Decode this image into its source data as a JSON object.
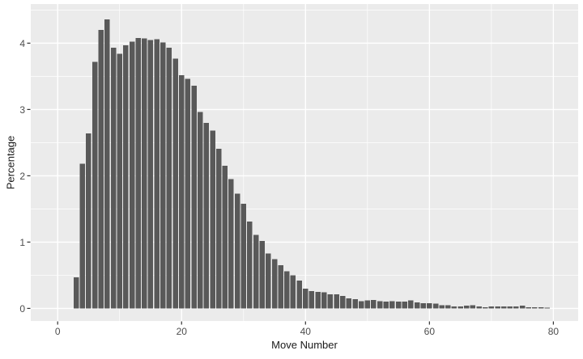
{
  "chart_data": {
    "type": "bar",
    "style": "ggplot2-histogram",
    "xlabel": "Move Number",
    "ylabel": "Percentage",
    "x": [
      3,
      4,
      5,
      6,
      7,
      8,
      9,
      10,
      11,
      12,
      13,
      14,
      15,
      16,
      17,
      18,
      19,
      20,
      21,
      22,
      23,
      24,
      25,
      26,
      27,
      28,
      29,
      30,
      31,
      32,
      33,
      34,
      35,
      36,
      37,
      38,
      39,
      40,
      41,
      42,
      43,
      44,
      45,
      46,
      47,
      48,
      49,
      50,
      51,
      52,
      53,
      54,
      55,
      56,
      57,
      58,
      59,
      60,
      61,
      62,
      63,
      64,
      65,
      66,
      67,
      68,
      69,
      70,
      71,
      72,
      73,
      74,
      75,
      76,
      77,
      78,
      79
    ],
    "values": [
      0.47,
      2.18,
      2.64,
      3.72,
      4.2,
      4.36,
      3.93,
      3.84,
      3.97,
      4.02,
      4.08,
      4.07,
      4.05,
      4.06,
      4.01,
      3.93,
      3.77,
      3.52,
      3.46,
      3.36,
      2.96,
      2.8,
      2.68,
      2.41,
      2.15,
      1.95,
      1.73,
      1.58,
      1.31,
      1.11,
      1.02,
      0.83,
      0.74,
      0.65,
      0.56,
      0.5,
      0.42,
      0.3,
      0.26,
      0.25,
      0.24,
      0.21,
      0.21,
      0.19,
      0.15,
      0.14,
      0.11,
      0.12,
      0.13,
      0.11,
      0.1,
      0.11,
      0.1,
      0.1,
      0.12,
      0.09,
      0.08,
      0.08,
      0.07,
      0.05,
      0.05,
      0.03,
      0.03,
      0.04,
      0.05,
      0.03,
      0.02,
      0.03,
      0.03,
      0.03,
      0.03,
      0.03,
      0.04,
      0.02,
      0.02,
      0.02,
      0.01
    ],
    "bar_width": 0.85,
    "xlim": [
      -4.34,
      84.0
    ],
    "ylim": [
      -0.19,
      4.59
    ],
    "x_major_ticks": [
      0,
      20,
      40,
      60,
      80
    ],
    "x_minor_ticks": [
      10,
      30,
      50,
      70
    ],
    "y_major_ticks": [
      0,
      1,
      2,
      3,
      4
    ],
    "y_minor_ticks": [
      0.5,
      1.5,
      2.5,
      3.5,
      4.5
    ],
    "grid": true,
    "legend": "none",
    "colors": {
      "bar": "#595959",
      "panel_bg": "#ebebeb",
      "grid": "#ffffff",
      "axis_text": "#4d4d4d",
      "axis_title": "#1a1a1a",
      "tick_mark": "#333333",
      "background": "#ffffff"
    }
  }
}
